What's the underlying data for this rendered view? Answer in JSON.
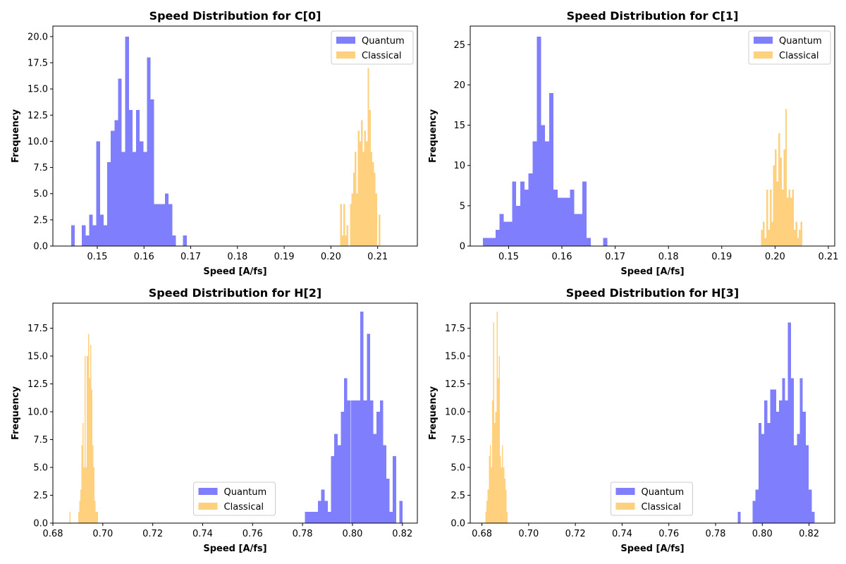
{
  "colors": {
    "quantum": "#7f7ffe",
    "classical": "#ffd17f",
    "axis": "#000000",
    "legend_border": "#cccccc"
  },
  "chart_data": [
    {
      "type": "histogram",
      "title": "Speed Distribution for C[0]",
      "xlabel": "Speed [A/fs]",
      "ylabel": "Frequency",
      "xlim": [
        0.1405,
        0.2185
      ],
      "ylim": [
        0,
        21
      ],
      "xticks": [
        0.15,
        0.16,
        0.17,
        0.18,
        0.19,
        0.2,
        0.21
      ],
      "xtick_labels": [
        "0.15",
        "0.16",
        "0.17",
        "0.18",
        "0.19",
        "0.20",
        "0.21"
      ],
      "yticks": [
        0,
        2.5,
        5,
        7.5,
        10,
        12.5,
        15,
        17.5,
        20
      ],
      "ytick_labels": [
        "0.0",
        "2.5",
        "5.0",
        "7.5",
        "10.0",
        "12.5",
        "15.0",
        "17.5",
        "20.0"
      ],
      "legend_position": "upper right",
      "series": [
        {
          "name": "Quantum",
          "color_key": "quantum",
          "bin_start": 0.1444,
          "bin_width": 0.000773,
          "counts": [
            2,
            0,
            0,
            2,
            1,
            3,
            2,
            10,
            3,
            2,
            8,
            11,
            12,
            16,
            9,
            20,
            13,
            9,
            13,
            10,
            9,
            18,
            14,
            4,
            4,
            4,
            5,
            4,
            1,
            0,
            0,
            1
          ]
        },
        {
          "name": "Classical",
          "color_key": "classical",
          "bin_start": 0.202,
          "bin_width": 0.000343,
          "counts": [
            4,
            1,
            4,
            1,
            2,
            0,
            4,
            5,
            7,
            9,
            5,
            11,
            10,
            12,
            9,
            11,
            10,
            17,
            13,
            9,
            8,
            7,
            5,
            0,
            3
          ]
        }
      ]
    },
    {
      "type": "histogram",
      "title": "Speed Distribution for C[1]",
      "xlabel": "Speed [A/fs]",
      "ylabel": "Frequency",
      "xlim": [
        0.1428,
        0.2112
      ],
      "ylim": [
        0,
        27.3
      ],
      "xticks": [
        0.15,
        0.16,
        0.17,
        0.18,
        0.19,
        0.2,
        0.21
      ],
      "xtick_labels": [
        "0.15",
        "0.16",
        "0.17",
        "0.18",
        "0.19",
        "0.20",
        "0.21"
      ],
      "yticks": [
        0,
        5,
        10,
        15,
        20,
        25
      ],
      "ytick_labels": [
        "0",
        "5",
        "10",
        "15",
        "20",
        "25"
      ],
      "legend_position": "upper right",
      "series": [
        {
          "name": "Quantum",
          "color_key": "quantum",
          "bin_start": 0.1452,
          "bin_width": 0.000777,
          "counts": [
            1,
            1,
            1,
            2,
            4,
            3,
            3,
            8,
            5,
            8,
            7,
            9,
            13,
            26,
            15,
            13,
            19,
            7,
            6,
            6,
            6,
            7,
            4,
            4,
            8,
            1,
            0,
            0,
            0,
            1
          ]
        },
        {
          "name": "Classical",
          "color_key": "classical",
          "bin_start": 0.1974,
          "bin_width": 0.000322,
          "counts": [
            2,
            3,
            1,
            7,
            2,
            7,
            3,
            10,
            12,
            8,
            14,
            11,
            7,
            12,
            17,
            6,
            7,
            6,
            7,
            2,
            3,
            1,
            2,
            3
          ]
        }
      ]
    },
    {
      "type": "histogram",
      "title": "Speed Distribution for H[2]",
      "xlabel": "Speed [A/fs]",
      "ylabel": "Frequency",
      "xlim": [
        0.68,
        0.826
      ],
      "ylim": [
        0,
        19.75
      ],
      "xticks": [
        0.68,
        0.7,
        0.72,
        0.74,
        0.76,
        0.78,
        0.8,
        0.82
      ],
      "xtick_labels": [
        "0.68",
        "0.70",
        "0.72",
        "0.74",
        "0.76",
        "0.78",
        "0.80",
        "0.82"
      ],
      "yticks": [
        0,
        2.5,
        5,
        7.5,
        10,
        12.5,
        15,
        17.5
      ],
      "ytick_labels": [
        "0.0",
        "2.5",
        "5.0",
        "7.5",
        "10.0",
        "12.5",
        "15.0",
        "17.5"
      ],
      "legend_position": "lower center",
      "series": [
        {
          "name": "Quantum",
          "color_key": "quantum",
          "bin_start": 0.781,
          "bin_width": 0.001303,
          "counts": [
            1,
            1,
            1,
            1,
            2,
            3,
            2,
            1,
            6,
            8,
            7,
            10,
            13,
            11,
            11,
            11,
            11,
            19,
            11,
            17,
            11,
            8,
            10,
            11,
            7,
            4,
            1,
            6,
            0,
            2
          ]
        },
        {
          "name": "Classical",
          "color_key": "classical",
          "bin_start": 0.6866,
          "bin_width": 0.000439,
          "counts": [
            1,
            0,
            0,
            0,
            0,
            0,
            0,
            0,
            1,
            2,
            3,
            7,
            9,
            5,
            15,
            5,
            15,
            17,
            13,
            16,
            12,
            7,
            5,
            2,
            1,
            1
          ]
        }
      ]
    },
    {
      "type": "histogram",
      "title": "Speed Distribution for H[3]",
      "xlabel": "Speed [A/fs]",
      "ylabel": "Frequency",
      "xlim": [
        0.675,
        0.831
      ],
      "ylim": [
        0,
        19.75
      ],
      "xticks": [
        0.68,
        0.7,
        0.72,
        0.74,
        0.76,
        0.78,
        0.8,
        0.82
      ],
      "xtick_labels": [
        "0.68",
        "0.70",
        "0.72",
        "0.74",
        "0.76",
        "0.78",
        "0.80",
        "0.82"
      ],
      "yticks": [
        0,
        2.5,
        5,
        7.5,
        10,
        12.5,
        15,
        17.5
      ],
      "ytick_labels": [
        "0.0",
        "2.5",
        "5.0",
        "7.5",
        "10.0",
        "12.5",
        "15.0",
        "17.5"
      ],
      "legend_position": "lower center",
      "series": [
        {
          "name": "Quantum",
          "color_key": "quantum",
          "bin_start": 0.7895,
          "bin_width": 0.001265,
          "counts": [
            1,
            0,
            0,
            0,
            0,
            2,
            3,
            9,
            8,
            11,
            9,
            12,
            12,
            10,
            11,
            13,
            11,
            18,
            13,
            7,
            8,
            13,
            10,
            7,
            3,
            1
          ]
        },
        {
          "name": "Classical",
          "color_key": "classical",
          "bin_start": 0.6815,
          "bin_width": 0.000475,
          "counts": [
            1,
            2,
            3,
            6,
            7,
            5,
            11,
            18,
            9,
            10,
            19,
            13,
            15,
            6,
            5,
            7,
            5,
            4,
            3,
            1
          ]
        }
      ]
    }
  ]
}
